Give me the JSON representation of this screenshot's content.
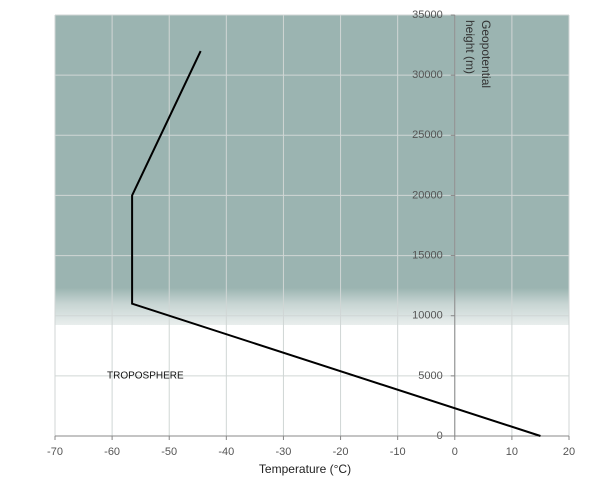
{
  "chart_data": {
    "type": "line",
    "xlabel": "Temperature (°C)",
    "ylabel": "Geopotential height (m)",
    "annotation": "TROPOSPHERE",
    "x": [
      15,
      -56.5,
      -56.5,
      -44.5
    ],
    "values": [
      0,
      11000,
      20000,
      32000
    ],
    "color": "#000000",
    "xlim": [
      -70,
      20
    ],
    "xticks": [
      -70,
      -60,
      -50,
      -40,
      -30,
      -20,
      -10,
      0,
      10,
      20
    ],
    "ylim": [
      0,
      35000
    ],
    "yticks": [
      0,
      5000,
      10000,
      15000,
      20000,
      25000,
      30000,
      35000
    ],
    "grid": true
  }
}
